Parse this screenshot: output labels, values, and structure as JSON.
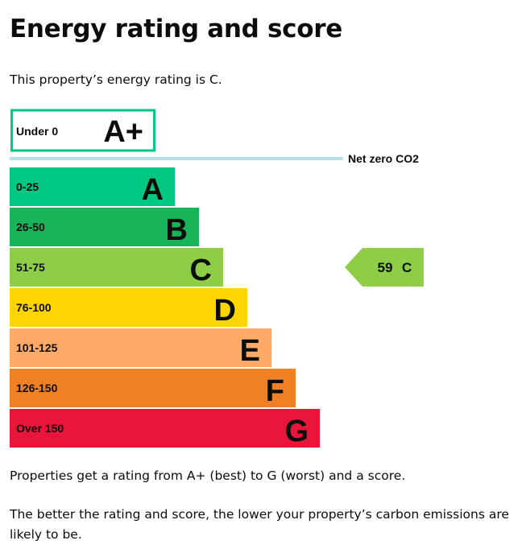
{
  "page": {
    "title": "Energy rating and score",
    "intro": "This property’s energy rating is C.",
    "footer_1": "Properties get a rating from A+ (best) to G (worst) and a score.",
    "footer_2": "The better the rating and score, the lower your property’s carbon emissions are likely to be."
  },
  "chart_data": {
    "type": "bar",
    "top_band": {
      "letter": "A+",
      "range": "Under 0",
      "color": "#00c781"
    },
    "net_zero_label": "Net zero CO2",
    "net_zero_color": "#b9dfe9",
    "bands": [
      {
        "letter": "A",
        "range": "0-25",
        "color": "#00c781"
      },
      {
        "letter": "B",
        "range": "26-50",
        "color": "#19b459"
      },
      {
        "letter": "C",
        "range": "51-75",
        "color": "#8dce46"
      },
      {
        "letter": "D",
        "range": "76-100",
        "color": "#ffd500"
      },
      {
        "letter": "E",
        "range": "101-125",
        "color": "#fcaa65"
      },
      {
        "letter": "F",
        "range": "126-150",
        "color": "#ef8023"
      },
      {
        "letter": "G",
        "range": "Over 150",
        "color": "#e9153b"
      }
    ],
    "current": {
      "score": 59,
      "rating": "C",
      "color": "#8dce46"
    }
  }
}
